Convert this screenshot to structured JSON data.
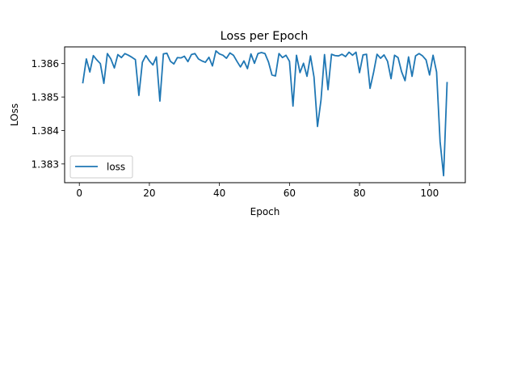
{
  "chart_data": {
    "type": "line",
    "title": "Loss per Epoch",
    "xlabel": "Epoch",
    "ylabel": "LOss",
    "xlim": [
      -4.2,
      110.2
    ],
    "ylim": [
      1.38244,
      1.3865
    ],
    "xticks": [
      0,
      20,
      40,
      60,
      80,
      100
    ],
    "yticks": [
      1.383,
      1.384,
      1.385,
      1.386
    ],
    "ytick_labels": [
      "1.383",
      "1.384",
      "1.385",
      "1.386"
    ],
    "grid": false,
    "legend": {
      "position": "lower-left",
      "entries": [
        "loss"
      ]
    },
    "series": [
      {
        "name": "loss",
        "color": "#1f77b4",
        "x": [
          1,
          2,
          3,
          4,
          5,
          6,
          7,
          8,
          9,
          10,
          11,
          12,
          13,
          14,
          15,
          16,
          17,
          18,
          19,
          20,
          21,
          22,
          23,
          24,
          25,
          26,
          27,
          28,
          29,
          30,
          31,
          32,
          33,
          34,
          35,
          36,
          37,
          38,
          39,
          40,
          41,
          42,
          43,
          44,
          45,
          46,
          47,
          48,
          49,
          50,
          51,
          52,
          53,
          54,
          55,
          56,
          57,
          58,
          59,
          60,
          61,
          62,
          63,
          64,
          65,
          66,
          67,
          68,
          69,
          70,
          71,
          72,
          73,
          74,
          75,
          76,
          77,
          78,
          79,
          80,
          81,
          82,
          83,
          84,
          85,
          86,
          87,
          88,
          89,
          90,
          91,
          92,
          93,
          94,
          95,
          96,
          97,
          98,
          99,
          100,
          101,
          102,
          103,
          104,
          105
        ],
        "values": [
          1.38543,
          1.38614,
          1.38575,
          1.38624,
          1.38611,
          1.386,
          1.38541,
          1.3863,
          1.38614,
          1.38587,
          1.38627,
          1.38618,
          1.3863,
          1.38625,
          1.38619,
          1.38612,
          1.38505,
          1.38604,
          1.38624,
          1.38608,
          1.38596,
          1.3862,
          1.38488,
          1.38629,
          1.38631,
          1.38607,
          1.38599,
          1.38618,
          1.38617,
          1.38622,
          1.38606,
          1.38627,
          1.3863,
          1.38614,
          1.38608,
          1.38604,
          1.38619,
          1.38593,
          1.38638,
          1.38629,
          1.38625,
          1.38616,
          1.38632,
          1.38625,
          1.38607,
          1.3859,
          1.38608,
          1.38585,
          1.38629,
          1.38601,
          1.3863,
          1.38633,
          1.3863,
          1.38605,
          1.38566,
          1.38563,
          1.3863,
          1.38618,
          1.38625,
          1.38607,
          1.38473,
          1.38625,
          1.38573,
          1.38601,
          1.38562,
          1.38623,
          1.3856,
          1.38412,
          1.38491,
          1.38627,
          1.38522,
          1.38628,
          1.38624,
          1.38623,
          1.38628,
          1.38621,
          1.38634,
          1.38625,
          1.38634,
          1.38573,
          1.38626,
          1.38628,
          1.38526,
          1.38573,
          1.38628,
          1.38616,
          1.38626,
          1.38607,
          1.38555,
          1.38625,
          1.38618,
          1.38576,
          1.38549,
          1.3862,
          1.38562,
          1.38623,
          1.3863,
          1.38623,
          1.38611,
          1.38566,
          1.38625,
          1.38575,
          1.38367,
          1.38265,
          1.38543
        ]
      }
    ]
  }
}
